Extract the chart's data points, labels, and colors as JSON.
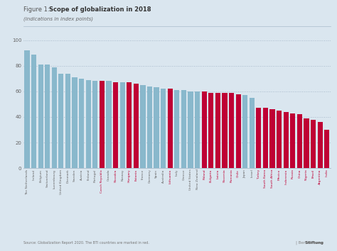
{
  "title_plain": "Figure 1: ",
  "title_bold": "Scope of globalization in 2018",
  "subtitle": "(indications in index points)",
  "source": "Source: Globalization Report 2020. The BTI countries are marked in red.",
  "branding": "| BertelsmannStiftung",
  "background_color": "#dae6ef",
  "bar_color_blue": "#89b8cc",
  "bar_color_red": "#bf0034",
  "tick_label_color": "#666666",
  "red_label_color": "#bf0034",
  "grid_color": "#aabbcc",
  "categories": [
    "The Netherlands",
    "Ireland",
    "Belgium",
    "Switzerland",
    "Luxembourg",
    "United Kingdom",
    "Denmark",
    "Sweden",
    "Austria",
    "Finland",
    "Portugal",
    "Czech Republic",
    "Canada",
    "Slovakia",
    "Norway",
    "Hungary",
    "Estonia",
    "France",
    "Germany",
    "Spain",
    "Australia",
    "Lithuania",
    "Italy",
    "Greece",
    "United States",
    "New Zealand",
    "Poland",
    "Bulgaria",
    "Latvia",
    "Slovenia",
    "Romania",
    "Chile",
    "Japan",
    "Israel",
    "Turkey",
    "South Korea",
    "South Africa",
    "Mexico",
    "Indonesia",
    "Russia",
    "China",
    "Nigeria",
    "Brazil",
    "Argentina",
    "India"
  ],
  "values": [
    92,
    89,
    81,
    81,
    79,
    74,
    74,
    71,
    70,
    69,
    68,
    68,
    68,
    67,
    67,
    67,
    66,
    65,
    64,
    63,
    62,
    62,
    61,
    61,
    60,
    60,
    60,
    59,
    59,
    59,
    59,
    58,
    57,
    55,
    47,
    47,
    46,
    45,
    44,
    43,
    42,
    39,
    38,
    36,
    30
  ],
  "is_bti": [
    false,
    false,
    false,
    false,
    false,
    false,
    false,
    false,
    false,
    false,
    false,
    true,
    false,
    true,
    false,
    true,
    true,
    false,
    false,
    false,
    false,
    true,
    false,
    false,
    false,
    false,
    true,
    true,
    true,
    true,
    true,
    true,
    false,
    false,
    true,
    true,
    true,
    true,
    true,
    true,
    true,
    true,
    true,
    true,
    true
  ],
  "ylim": [
    0,
    102
  ],
  "yticks": [
    0,
    20,
    40,
    60,
    80,
    100
  ]
}
